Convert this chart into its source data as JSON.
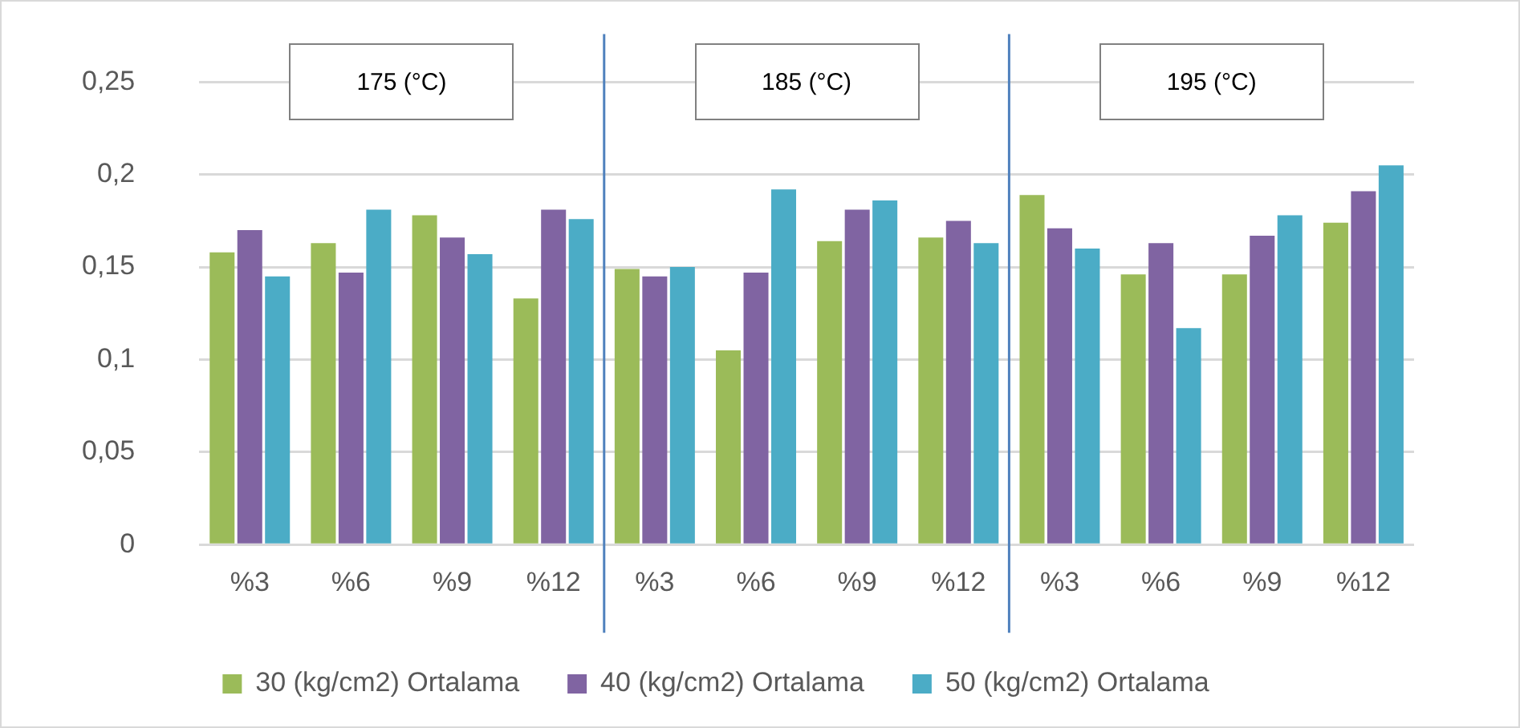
{
  "chart_data": {
    "type": "bar",
    "categories": [
      "%3",
      "%6",
      "%9",
      "%12",
      "%3",
      "%6",
      "%9",
      "%12",
      "%3",
      "%6",
      "%9",
      "%12"
    ],
    "series": [
      {
        "name": "30 (kg/cm2) Ortalama",
        "color": "#9bbb59",
        "values": [
          0.158,
          0.163,
          0.178,
          0.133,
          0.149,
          0.105,
          0.164,
          0.166,
          0.189,
          0.146,
          0.146,
          0.174
        ]
      },
      {
        "name": "40 (kg/cm2) Ortalama",
        "color": "#8064a2",
        "values": [
          0.17,
          0.147,
          0.166,
          0.181,
          0.145,
          0.147,
          0.181,
          0.175,
          0.171,
          0.163,
          0.167,
          0.191
        ]
      },
      {
        "name": "50 (kg/cm2) Ortalama",
        "color": "#4bacc6",
        "values": [
          0.145,
          0.181,
          0.157,
          0.176,
          0.15,
          0.192,
          0.186,
          0.163,
          0.16,
          0.117,
          0.178,
          0.205
        ]
      }
    ],
    "annotations": [
      "175 (°C)",
      "185 (°C)",
      "195 (°C)"
    ],
    "ylim": [
      0,
      0.25
    ],
    "yticks": [
      {
        "value": 0,
        "label": "0"
      },
      {
        "value": 0.05,
        "label": "0,05"
      },
      {
        "value": 0.1,
        "label": "0,1"
      },
      {
        "value": 0.15,
        "label": "0,15"
      },
      {
        "value": 0.2,
        "label": "0,2"
      },
      {
        "value": 0.25,
        "label": "0,25"
      }
    ],
    "grid": "y",
    "legend": "bottom"
  }
}
